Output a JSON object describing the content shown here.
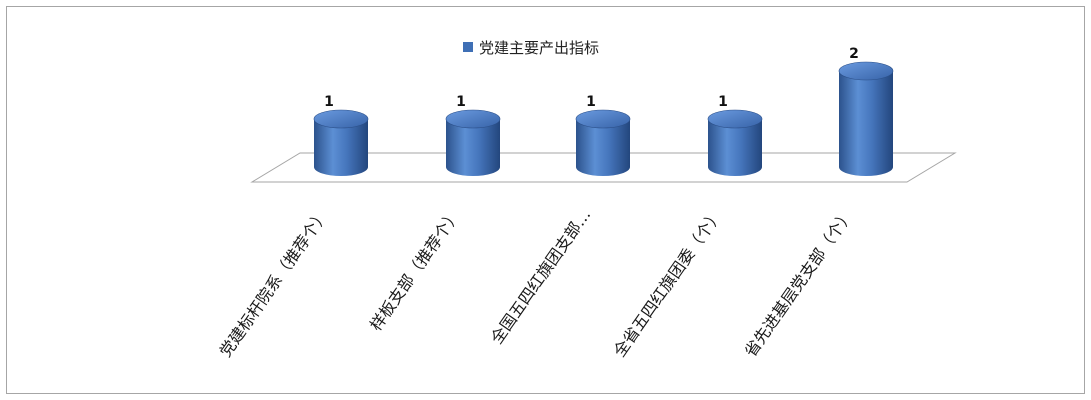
{
  "chart_data": {
    "type": "bar",
    "categories": [
      "党建标杆院系（推荐个）",
      "样板支部（推荐个）",
      "全国五四红旗团支部…",
      "全省五四红旗团委（个）",
      "省先进基层党支部（个）"
    ],
    "series": [
      {
        "name": "党建主要产出指标",
        "values": [
          1,
          1,
          1,
          1,
          2
        ]
      }
    ],
    "data_labels": [
      "1",
      "1",
      "1",
      "1",
      "2"
    ],
    "legend_position": "top",
    "grid": false,
    "ylim": [
      0,
      2
    ],
    "bar_color": "#3f6fb5"
  }
}
